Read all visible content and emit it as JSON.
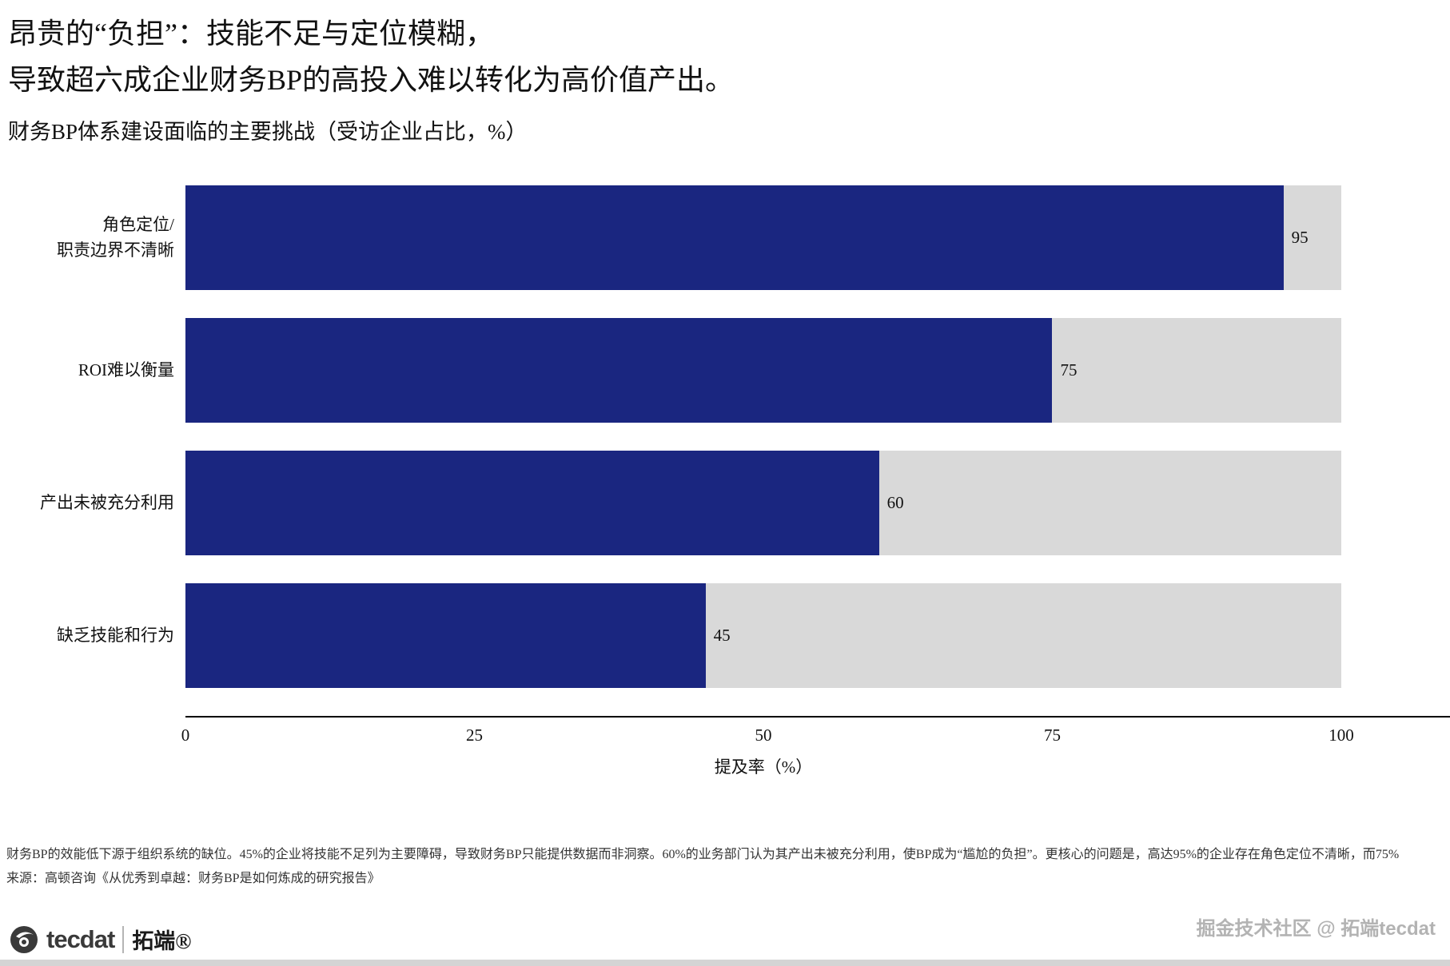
{
  "header": {
    "title_line1": "昂贵的“负担”：技能不足与定位模糊，",
    "title_line2": "导致超六成企业财务BP的高投入难以转化为高价值产出。",
    "subtitle": "财务BP体系建设面临的主要挑战（受访企业占比，%）"
  },
  "chart_data": {
    "type": "bar",
    "orientation": "horizontal",
    "title": "财务BP体系建设面临的主要挑战（受访企业占比，%）",
    "categories": [
      "角色定位/\n职责边界不清晰",
      "ROI难以衡量",
      "产出未被充分利用",
      "缺乏技能和行为"
    ],
    "values": [
      95,
      75,
      60,
      45
    ],
    "xlabel": "提及率（%）",
    "ylabel": "",
    "xlim": [
      0,
      100
    ],
    "xticks": [
      0,
      25,
      50,
      75,
      100
    ],
    "grid": false,
    "value_labels": true,
    "bar_color": "#1a2680",
    "track_color": "#d9d9d9"
  },
  "footnote": {
    "line1": "财务BP的效能低下源于组织系统的缺位。45%的企业将技能不足列为主要障碍，导致财务BP只能提供数据而非洞察。60%的业务部门认为其产出未被充分利用，使BP成为“尴尬的负担”。更核心的问题是，高达95%的企业存在角色定位不清晰，而75%",
    "line2": "来源：高顿咨询《从优秀到卓越：财务BP是如何炼成的研究报告》"
  },
  "footer": {
    "logo_text": "tecdat",
    "logo_cjk": "拓端®",
    "watermark": "掘金技术社区 @ 拓端tecdat"
  }
}
